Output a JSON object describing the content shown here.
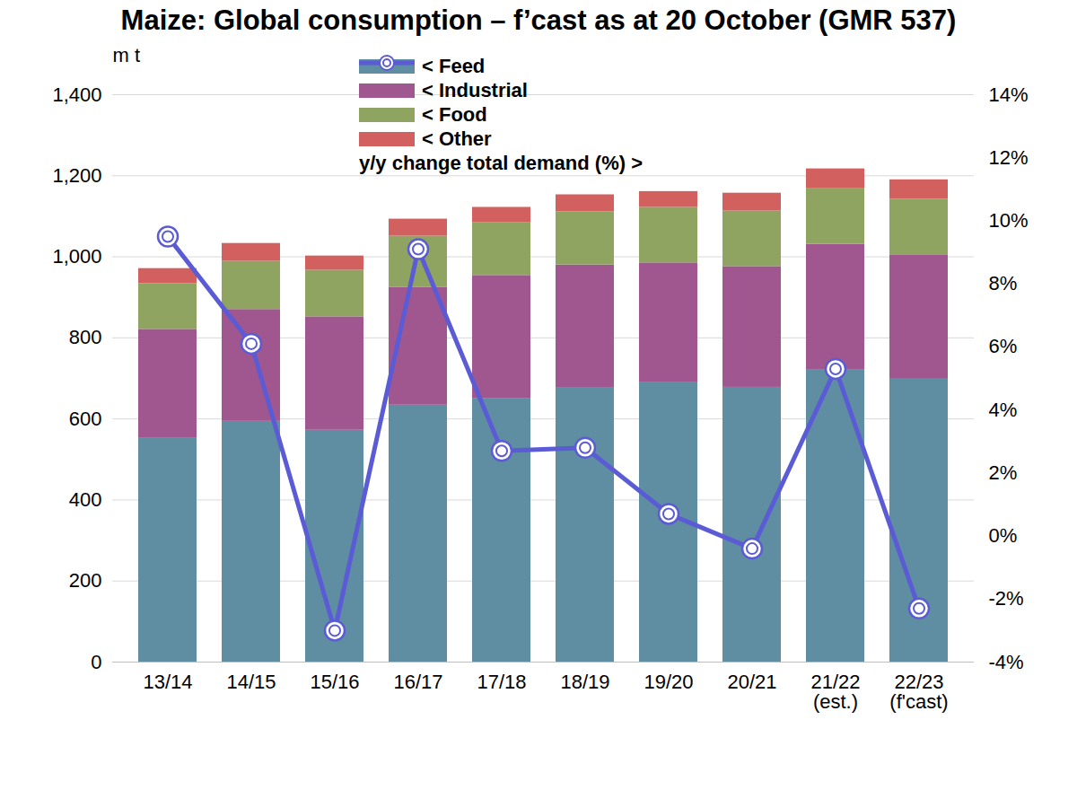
{
  "chart_data": {
    "type": "bar",
    "stacked": true,
    "title": "Maize: Global consumption – f’cast as at 20 October (GMR 537)",
    "ylabel": "m t",
    "categories": [
      "13/14",
      "14/15",
      "15/16",
      "16/17",
      "17/18",
      "18/19",
      "19/20",
      "20/21",
      "21/22\n(est.)",
      "22/23\n(f'cast)"
    ],
    "series": [
      {
        "name": "< Feed",
        "type": "bar",
        "color": "#5f8ea3",
        "values": [
          552,
          594,
          572,
          634,
          651,
          676,
          691,
          678,
          722,
          698
        ]
      },
      {
        "name": "< Industrial",
        "type": "bar",
        "color": "#a0578f",
        "values": [
          269,
          276,
          280,
          291,
          303,
          304,
          294,
          298,
          309,
          307
        ]
      },
      {
        "name": "< Food",
        "type": "bar",
        "color": "#8fa461",
        "values": [
          113,
          119,
          115,
          126,
          130,
          131,
          137,
          137,
          137,
          137
        ]
      },
      {
        "name": "< Other",
        "type": "bar",
        "color": "#d2605f",
        "values": [
          37,
          44,
          35,
          42,
          38,
          42,
          39,
          44,
          49,
          48
        ]
      },
      {
        "name": "y/y change total demand (%) >",
        "type": "line",
        "axis": "y2",
        "color": "#5b5bd6",
        "marker": "circle",
        "values": [
          9.5,
          6.1,
          -3.0,
          9.1,
          2.7,
          2.8,
          0.7,
          -0.4,
          5.3,
          -2.3
        ]
      }
    ],
    "ylim": [
      0,
      1400
    ],
    "yticks": [
      0,
      200,
      400,
      600,
      800,
      {
        "value": 1000,
        "label": "1,000"
      },
      {
        "value": 1200,
        "label": "1,200"
      },
      {
        "value": 1400,
        "label": "1,400"
      }
    ],
    "y2lim": [
      -4,
      14
    ],
    "y2ticks": [
      {
        "value": -4,
        "label": "-4%"
      },
      {
        "value": -2,
        "label": "-2%"
      },
      {
        "value": 0,
        "label": "0%"
      },
      {
        "value": 2,
        "label": "2%"
      },
      {
        "value": 4,
        "label": "4%"
      },
      {
        "value": 6,
        "label": "6%"
      },
      {
        "value": 8,
        "label": "8%"
      },
      {
        "value": 10,
        "label": "10%"
      },
      {
        "value": 12,
        "label": "12%"
      },
      {
        "value": 14,
        "label": "14%"
      }
    ],
    "grid": true,
    "legend": "top"
  }
}
